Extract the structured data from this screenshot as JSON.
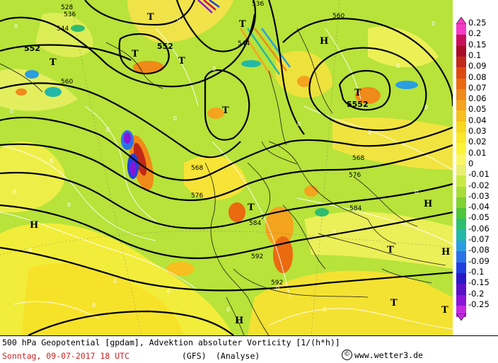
{
  "title": "500 hPa Geopotential [gpdam], Advektion absoluter Vorticity [1/(h*h)]",
  "date": "Sonntag, 09-07-2017  18 UTC",
  "model": "(GFS)",
  "run_type": "(Analyse)",
  "copyright": "www.wetter3.de",
  "copyright_icon": "copyright-icon",
  "colors": {
    "background_field": "#b7e33a",
    "contour": "#000000",
    "coastline": "#1a1a1a",
    "zero_line": "#ffffff",
    "date_text": "#d32020"
  },
  "scale": [
    {
      "label": "0.25",
      "color": "#f33cc4"
    },
    {
      "label": "0.2",
      "color": "#c8105a"
    },
    {
      "label": "0.15",
      "color": "#a80c28"
    },
    {
      "label": "0.1",
      "color": "#c22818"
    },
    {
      "label": "0.09",
      "color": "#dd4a10"
    },
    {
      "label": "0.08",
      "color": "#ea6a10"
    },
    {
      "label": "0.07",
      "color": "#f08a18"
    },
    {
      "label": "0.06",
      "color": "#f4a41e"
    },
    {
      "label": "0.05",
      "color": "#f7c020"
    },
    {
      "label": "0.04",
      "color": "#f9d820"
    },
    {
      "label": "0.03",
      "color": "#fbe828"
    },
    {
      "label": "0.02",
      "color": "#fdf436"
    },
    {
      "label": "0.01",
      "color": "#fbf866"
    },
    {
      "label": "0",
      "color": "#e8f070"
    },
    {
      "label": "-0.01",
      "color": "#c9ea46"
    },
    {
      "label": "-0.02",
      "color": "#a7de3a"
    },
    {
      "label": "-0.03",
      "color": "#80d232"
    },
    {
      "label": "-0.04",
      "color": "#4fc63a"
    },
    {
      "label": "-0.05",
      "color": "#2ebe70"
    },
    {
      "label": "-0.06",
      "color": "#22b8a8"
    },
    {
      "label": "-0.07",
      "color": "#2a9ee0"
    },
    {
      "label": "-0.08",
      "color": "#2a72e8"
    },
    {
      "label": "-0.09",
      "color": "#2040e0"
    },
    {
      "label": "-0.1",
      "color": "#2a18c8"
    },
    {
      "label": "-0.15",
      "color": "#5a12c8"
    },
    {
      "label": "-0.2",
      "color": "#8a14d8"
    },
    {
      "label": "-0.25",
      "color": "#c228e0"
    }
  ],
  "contour_labels": [
    "528",
    "536",
    "544",
    "552",
    "560",
    "568",
    "576",
    "584",
    "592",
    "5552",
    "536",
    "544",
    "552",
    "560",
    "568",
    "576",
    "584",
    "592"
  ],
  "pressure_centers": [
    "T",
    "T",
    "T",
    "T",
    "T",
    "T",
    "T",
    "T",
    "T",
    "H",
    "H",
    "H",
    "H",
    "H"
  ],
  "zero_labels": [
    "0"
  ]
}
